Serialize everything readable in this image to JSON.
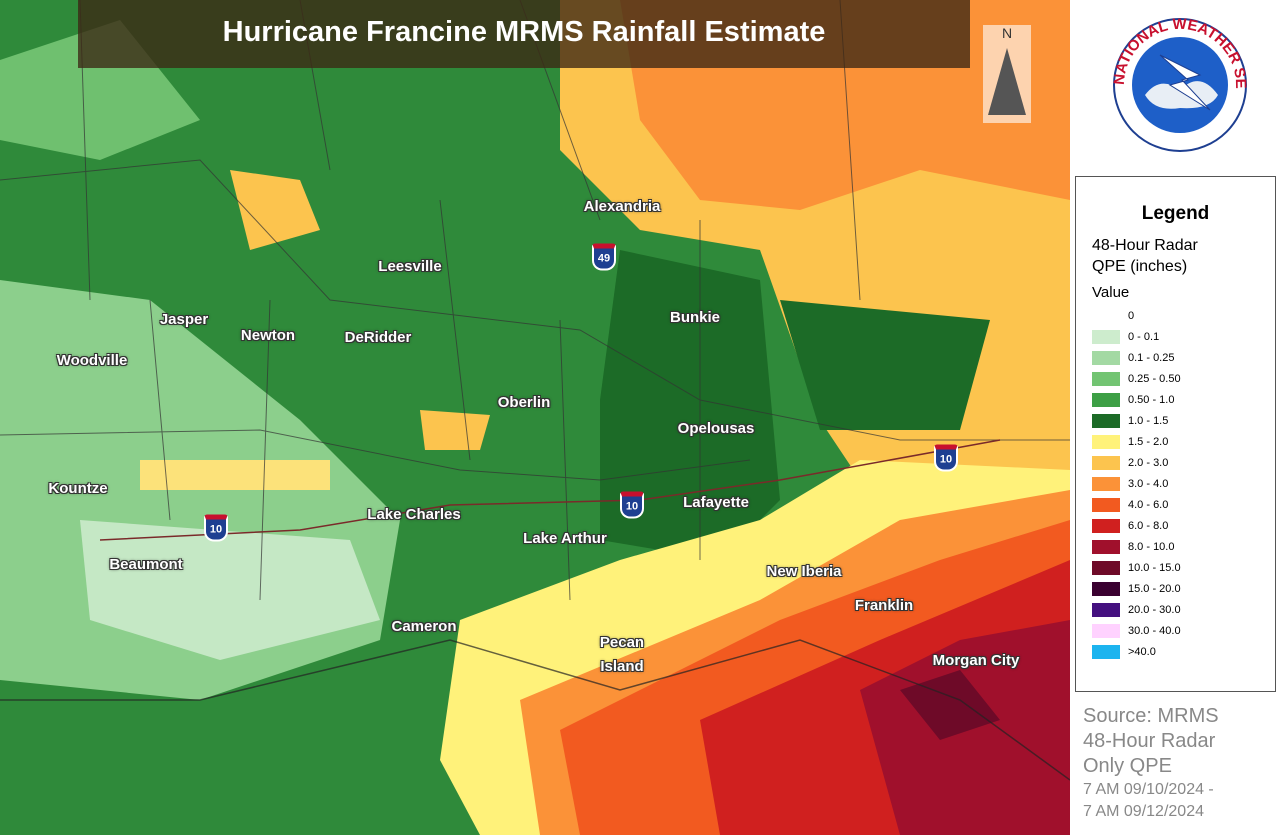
{
  "header": {
    "title": "Hurricane Francine MRMS Rainfall Estimate"
  },
  "compass": "N",
  "logo": {
    "text": "NATIONAL WEATHER SERVICE"
  },
  "cities": [
    "Alexandria",
    "Leesville",
    "Jasper",
    "Newton",
    "DeRidder",
    "Woodville",
    "Bunkie",
    "Oberlin",
    "Opelousas",
    "Kountze",
    "Lake Charles",
    "Lafayette",
    "Lake Arthur",
    "Beaumont",
    "New Iberia",
    "Franklin",
    "Cameron",
    "Pecan Island",
    "Morgan City"
  ],
  "shields": [
    "49",
    "10",
    "10",
    "10"
  ],
  "legend": {
    "title": "Legend",
    "subtitle": "48-Hour Radar QPE (inches)",
    "field": "Value",
    "items": [
      {
        "label": "0",
        "color": "#ffffff"
      },
      {
        "label": "0 - 0.1",
        "color": "#cdeccd"
      },
      {
        "label": "0.1 - 0.25",
        "color": "#a3d9a3"
      },
      {
        "label": "0.25 - 0.50",
        "color": "#72c472"
      },
      {
        "label": "0.50 - 1.0",
        "color": "#3d9f45"
      },
      {
        "label": "1.0 - 1.5",
        "color": "#1c6b27"
      },
      {
        "label": "1.5 - 2.0",
        "color": "#fff27a"
      },
      {
        "label": "2.0 - 3.0",
        "color": "#fcc44e"
      },
      {
        "label": "3.0 - 4.0",
        "color": "#fb9238"
      },
      {
        "label": "4.0 - 6.0",
        "color": "#f25a20"
      },
      {
        "label": "6.0 - 8.0",
        "color": "#d0201f"
      },
      {
        "label": "8.0 - 10.0",
        "color": "#a0102c"
      },
      {
        "label": "10.0 - 15.0",
        "color": "#6e0a28"
      },
      {
        "label": "15.0 - 20.0",
        "color": "#3a0030"
      },
      {
        "label": "20.0 - 30.0",
        "color": "#44107f"
      },
      {
        "label": "30.0 - 40.0",
        "color": "#ffd2ff"
      },
      {
        "label": ">40.0",
        "color": "#1cb4ef"
      }
    ]
  },
  "source": [
    "Source: MRMS",
    "48-Hour Radar",
    "Only QPE",
    "7 AM 09/10/2024 -",
    "7 AM 09/12/2024"
  ]
}
